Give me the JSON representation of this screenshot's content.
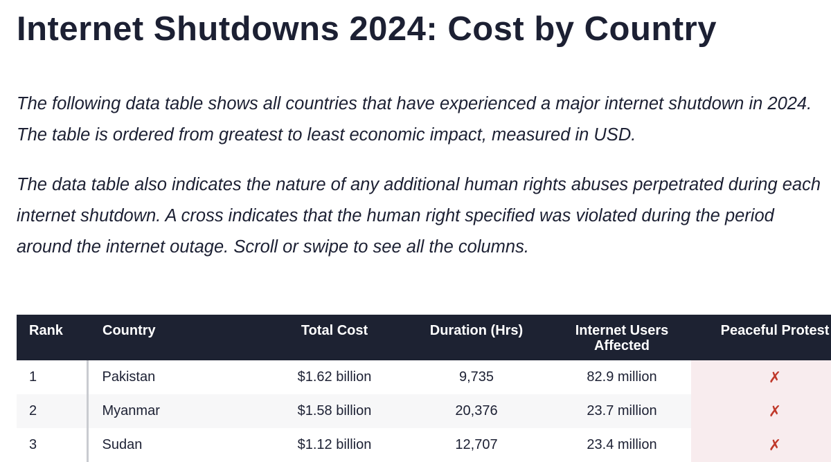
{
  "header": {
    "title": "Internet Shutdowns 2024: Cost by Country"
  },
  "intro": {
    "paragraph_1": "The following data table shows all countries that have experienced a major internet shutdown in 2024. The table is ordered from greatest to least economic impact, measured in USD.",
    "paragraph_2": "The data table also indicates the nature of any additional human rights abuses perpetrated during each internet shutdown. A cross indicates that the human right specified was violated during the period around the internet outage. Scroll or swipe to see all the columns."
  },
  "table": {
    "columns": [
      "Rank",
      "Country",
      "Total Cost",
      "Duration (Hrs)",
      "Internet Users Affected",
      "Peaceful Protest"
    ],
    "rows": [
      {
        "rank": "1",
        "country": "Pakistan",
        "total_cost": "$1.62 billion",
        "duration": "9,735",
        "users_affected": "82.9 million",
        "peaceful_protest": "✗"
      },
      {
        "rank": "2",
        "country": "Myanmar",
        "total_cost": "$1.58 billion",
        "duration": "20,376",
        "users_affected": "23.7 million",
        "peaceful_protest": "✗"
      },
      {
        "rank": "3",
        "country": "Sudan",
        "total_cost": "$1.12 billion",
        "duration": "12,707",
        "users_affected": "23.4 million",
        "peaceful_protest": "✗"
      }
    ]
  },
  "colors": {
    "header_bg": "#1d2232",
    "text": "#1c2033",
    "cross": "#c0392b",
    "protest_cell_bg": "#f8ecee"
  }
}
